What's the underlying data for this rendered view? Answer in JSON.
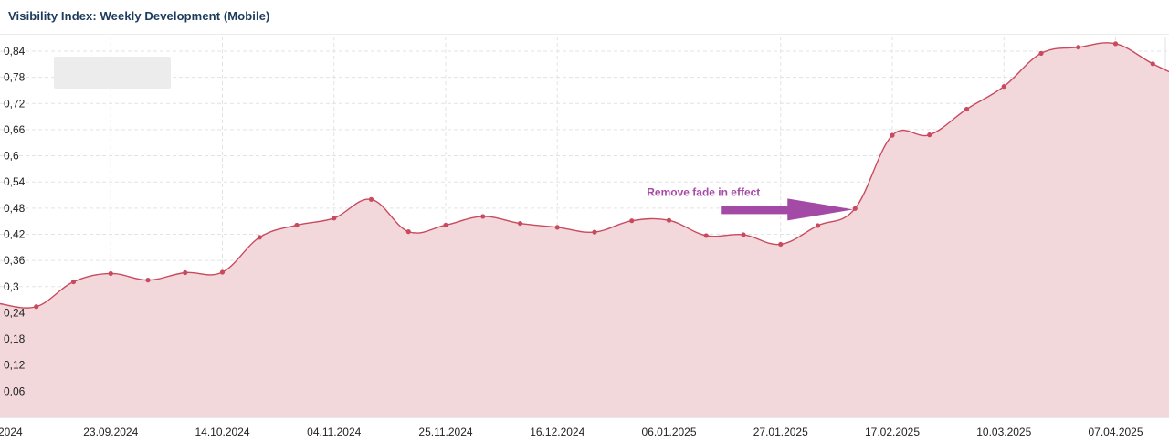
{
  "chart_data": {
    "type": "area",
    "title": "Visibility Index: Weekly Development (Mobile)",
    "xlabel": "",
    "ylabel": "",
    "ylim": [
      0,
      0.88
    ],
    "y_ticks": [
      "0,06",
      "0,12",
      "0,18",
      "0,24",
      "0,3",
      "0,36",
      "0,42",
      "0,48",
      "0,54",
      "0,6",
      "0,66",
      "0,72",
      "0,78",
      "0,84"
    ],
    "y_tick_values": [
      0.06,
      0.12,
      0.18,
      0.24,
      0.3,
      0.36,
      0.42,
      0.48,
      0.54,
      0.6,
      0.66,
      0.72,
      0.78,
      0.84
    ],
    "x_ticks": [
      "2024",
      "23.09.2024",
      "14.10.2024",
      "04.11.2024",
      "25.11.2024",
      "16.12.2024",
      "06.01.2025",
      "27.01.2025",
      "17.02.2025",
      "10.03.2025",
      "07.04.2025"
    ],
    "x": [
      "02.09.2024",
      "09.09.2024",
      "16.09.2024",
      "23.09.2024",
      "30.09.2024",
      "07.10.2024",
      "14.10.2024",
      "21.10.2024",
      "28.10.2024",
      "04.11.2024",
      "11.11.2024",
      "18.11.2024",
      "25.11.2024",
      "02.12.2024",
      "09.12.2024",
      "16.12.2024",
      "23.12.2024",
      "30.12.2024",
      "06.01.2025",
      "13.01.2025",
      "20.01.2025",
      "27.01.2025",
      "03.02.2025",
      "10.02.2025",
      "17.02.2025",
      "24.02.2025",
      "03.03.2025",
      "10.03.2025",
      "17.03.2025",
      "24.03.2025",
      "31.03.2025",
      "07.04.2025",
      "14.04.2025"
    ],
    "series": [
      {
        "name": "",
        "color": "#c94a5e",
        "fill": "#f2d8db",
        "values": [
          0.261,
          0.254,
          0.311,
          0.33,
          0.315,
          0.332,
          0.333,
          0.413,
          0.441,
          0.457,
          0.5,
          0.426,
          0.441,
          0.461,
          0.445,
          0.436,
          0.425,
          0.451,
          0.452,
          0.417,
          0.419,
          0.397,
          0.44,
          0.479,
          0.647,
          0.648,
          0.707,
          0.759,
          0.835,
          0.849,
          0.857,
          0.811,
          0.77
        ]
      }
    ],
    "annotations": [
      {
        "text": "Remove fade in effect",
        "x": "10.02.2025",
        "y": 0.479
      }
    ],
    "grid": true,
    "legend": "none"
  }
}
